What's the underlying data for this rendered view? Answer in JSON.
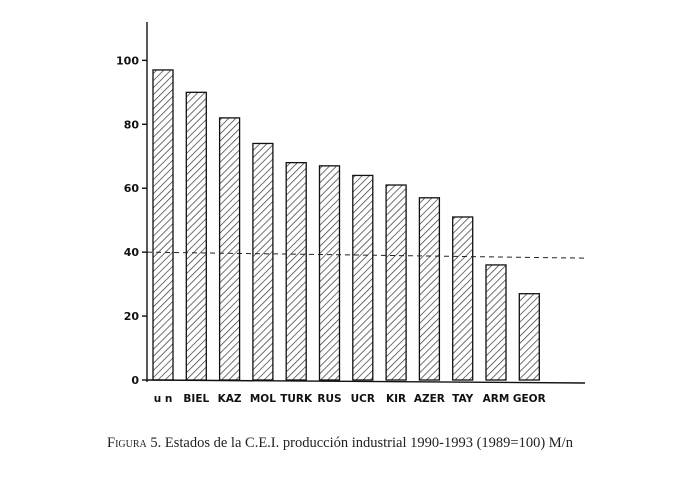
{
  "chart_data": {
    "type": "bar",
    "categories": [
      "u n",
      "BIEL",
      "KAZ",
      "MOL",
      "TURK",
      "RUS",
      "UCR",
      "KIR",
      "AZER",
      "TAY",
      "ARM",
      "GEOR"
    ],
    "values": [
      97,
      90,
      82,
      74,
      68,
      67,
      64,
      61,
      57,
      51,
      36,
      27
    ],
    "ylim": [
      0,
      112
    ],
    "yticks": [
      0,
      20,
      40,
      60,
      80,
      100
    ],
    "reference_line": {
      "y": 40,
      "style": "dashed"
    },
    "grid": false,
    "bar_fill": "diagonal-hatch",
    "title": "",
    "xlabel": "",
    "ylabel": ""
  },
  "caption": {
    "label": "Figura 5.",
    "text": "Estados de la C.E.I. producción industrial 1990-1993 (1989=100) M/n"
  },
  "colors": {
    "ink": "#111111",
    "background": "#ffffff"
  }
}
